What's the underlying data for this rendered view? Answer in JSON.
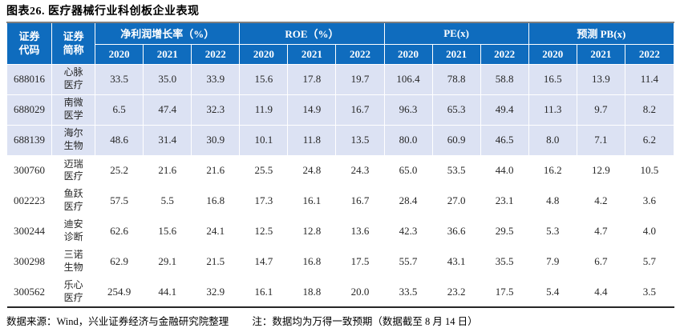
{
  "title": "图表26. 医疗器械行业科创板企业表现",
  "table": {
    "code_header": "证券\n代码",
    "name_header": "证券\n简称",
    "groups": [
      {
        "label": "净利润增长率（%）",
        "years": [
          "2020",
          "2021",
          "2022"
        ]
      },
      {
        "label": "ROE（%）",
        "years": [
          "2020",
          "2021",
          "2022"
        ]
      },
      {
        "label": "PE(x)",
        "years": [
          "2020",
          "2021",
          "2022"
        ]
      },
      {
        "label": "预测 PB(x)",
        "years": [
          "2020",
          "2021",
          "2022"
        ]
      }
    ],
    "rows": [
      {
        "code": "688016",
        "name": "心脉\n医疗",
        "highlight": true,
        "values": [
          "33.5",
          "35.0",
          "33.9",
          "15.6",
          "17.8",
          "19.7",
          "106.4",
          "78.8",
          "58.8",
          "16.5",
          "13.9",
          "11.4"
        ]
      },
      {
        "code": "688029",
        "name": "南微\n医学",
        "highlight": true,
        "values": [
          "6.5",
          "47.4",
          "32.3",
          "11.9",
          "14.9",
          "16.7",
          "96.3",
          "65.3",
          "49.4",
          "11.3",
          "9.7",
          "8.2"
        ]
      },
      {
        "code": "688139",
        "name": "海尔\n生物",
        "highlight": true,
        "values": [
          "48.6",
          "31.4",
          "30.9",
          "10.1",
          "11.8",
          "13.5",
          "80.0",
          "60.9",
          "46.5",
          "8.0",
          "7.1",
          "6.2"
        ]
      },
      {
        "code": "300760",
        "name": "迈瑞\n医疗",
        "highlight": false,
        "values": [
          "25.2",
          "21.6",
          "21.6",
          "25.5",
          "24.8",
          "24.3",
          "65.0",
          "53.5",
          "44.0",
          "16.2",
          "12.9",
          "10.5"
        ]
      },
      {
        "code": "002223",
        "name": "鱼跃\n医疗",
        "highlight": false,
        "values": [
          "57.5",
          "5.5",
          "16.8",
          "17.3",
          "16.1",
          "16.7",
          "28.4",
          "27.0",
          "23.1",
          "4.8",
          "4.2",
          "3.6"
        ]
      },
      {
        "code": "300244",
        "name": "迪安\n诊断",
        "highlight": false,
        "values": [
          "62.6",
          "15.6",
          "24.1",
          "12.5",
          "12.8",
          "13.6",
          "42.3",
          "36.6",
          "29.5",
          "5.3",
          "4.7",
          "4.0"
        ]
      },
      {
        "code": "300298",
        "name": "三诺\n生物",
        "highlight": false,
        "values": [
          "62.9",
          "29.1",
          "21.5",
          "14.7",
          "16.8",
          "17.5",
          "55.7",
          "43.1",
          "35.5",
          "7.9",
          "6.7",
          "5.7"
        ]
      },
      {
        "code": "300562",
        "name": "乐心\n医疗",
        "highlight": false,
        "values": [
          "254.9",
          "44.1",
          "32.9",
          "16.1",
          "18.8",
          "20.0",
          "33.5",
          "23.2",
          "17.5",
          "5.4",
          "4.4",
          "3.5"
        ]
      }
    ]
  },
  "footer": {
    "source": "数据来源：Wind，兴业证券经济与金融研究院整理",
    "note": "注：数据均为万得一致预期（数据截至 8 月 14 日）"
  },
  "colors": {
    "header_blue": "#0f6cbe",
    "row_highlight": "#dce2f3",
    "top_border": "#7f7f7f",
    "bottom_border": "#262626"
  }
}
